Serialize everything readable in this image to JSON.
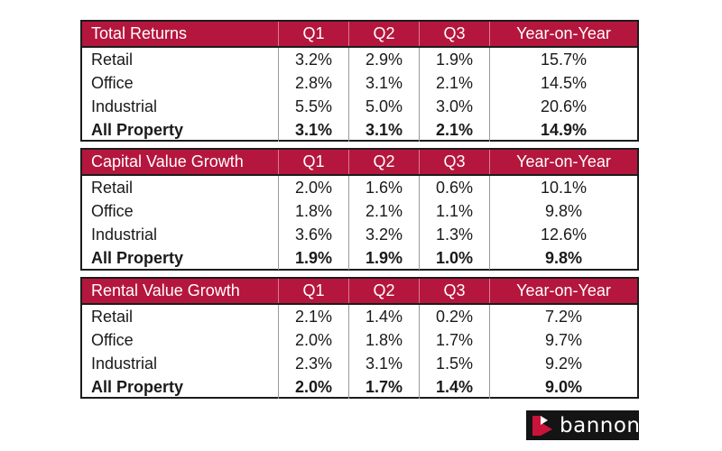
{
  "tables": [
    {
      "header": [
        "Total Returns",
        "Q1",
        "Q2",
        "Q3",
        "Year-on-Year"
      ],
      "rows": [
        [
          "Retail",
          "3.2%",
          "2.9%",
          "1.9%",
          "15.7%"
        ],
        [
          "Office",
          "2.8%",
          "3.1%",
          "2.1%",
          "14.5%"
        ],
        [
          "Industrial",
          "5.5%",
          "5.0%",
          "3.0%",
          "20.6%"
        ],
        [
          "All Property",
          "3.1%",
          "3.1%",
          "2.1%",
          "14.9%"
        ]
      ]
    },
    {
      "header": [
        "Capital Value Growth",
        "Q1",
        "Q2",
        "Q3",
        "Year-on-Year"
      ],
      "rows": [
        [
          "Retail",
          "2.0%",
          "1.6%",
          "0.6%",
          "10.1%"
        ],
        [
          "Office",
          "1.8%",
          "2.1%",
          "1.1%",
          "9.8%"
        ],
        [
          "Industrial",
          "3.6%",
          "3.2%",
          "1.3%",
          "12.6%"
        ],
        [
          "All Property",
          "1.9%",
          "1.9%",
          "1.0%",
          "9.8%"
        ]
      ]
    },
    {
      "header": [
        "Rental Value Growth",
        "Q1",
        "Q2",
        "Q3",
        "Year-on-Year"
      ],
      "rows": [
        [
          "Retail",
          "2.1%",
          "1.4%",
          "0.2%",
          "7.2%"
        ],
        [
          "Office",
          "2.0%",
          "1.8%",
          "1.7%",
          "9.7%"
        ],
        [
          "Industrial",
          "2.3%",
          "3.1%",
          "1.5%",
          "9.2%"
        ],
        [
          "All Property",
          "2.0%",
          "1.7%",
          "1.4%",
          "9.0%"
        ]
      ]
    }
  ],
  "logo": {
    "text": "bannon",
    "icon": "bannon-logo-mark-icon"
  },
  "colors": {
    "header_bg": "#b5163d",
    "header_text": "#ffffff",
    "logo_bg": "#141414",
    "logo_accent": "#c8143a"
  }
}
